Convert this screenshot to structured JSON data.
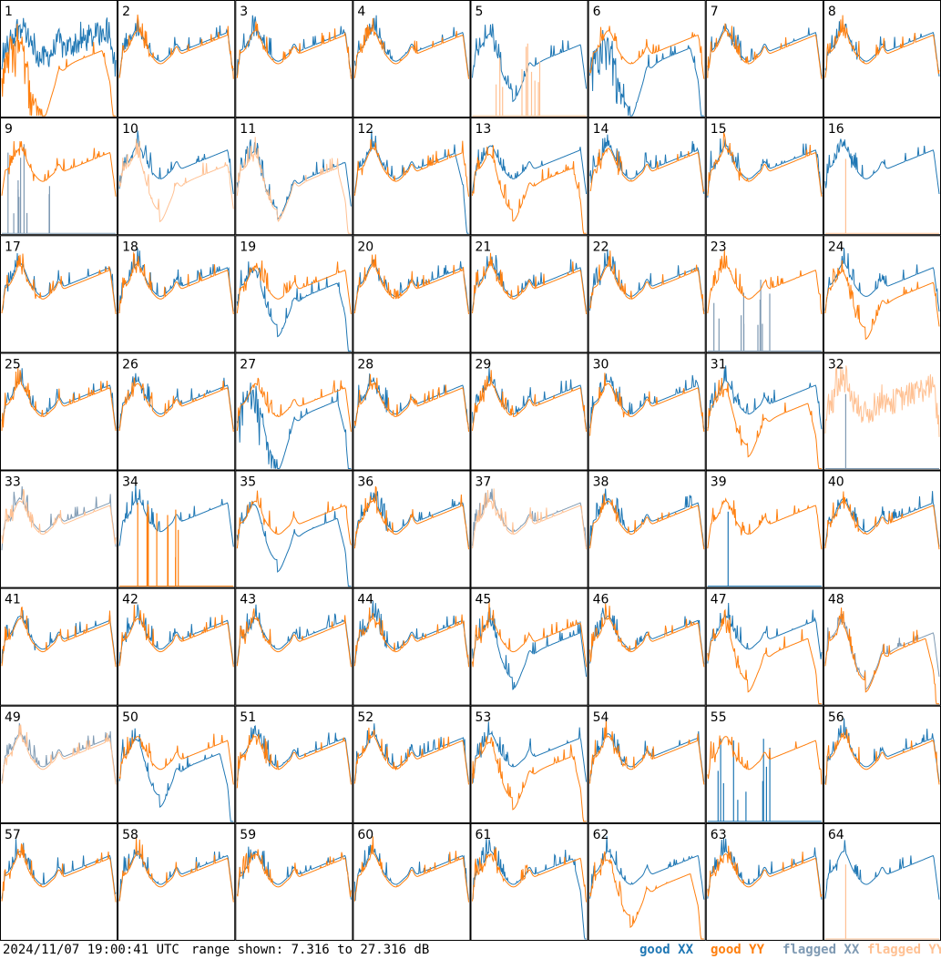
{
  "chart_data": {
    "type": "line",
    "panels": [
      {
        "label": "1",
        "xx": "good",
        "yy": "good",
        "xx_shape": "peaky",
        "yy_shape": "deep-dip-drop"
      },
      {
        "label": "2",
        "xx": "good",
        "yy": "good"
      },
      {
        "label": "3",
        "xx": "good",
        "yy": "good"
      },
      {
        "label": "4",
        "xx": "good",
        "yy": "good"
      },
      {
        "label": "5",
        "xx": "good",
        "yy": "flagged",
        "xx_shape": "dip",
        "yy_shape": "sparse-spikes"
      },
      {
        "label": "6",
        "xx": "good",
        "yy": "good",
        "xx_shape": "deep-dip-drop",
        "yy_shape": "normal"
      },
      {
        "label": "7",
        "xx": "good",
        "yy": "good"
      },
      {
        "label": "8",
        "xx": "good",
        "yy": "good"
      },
      {
        "label": "9",
        "xx": "flagged",
        "yy": "good",
        "xx_shape": "sparse-spikes",
        "yy_shape": "normal"
      },
      {
        "label": "10",
        "xx": "good",
        "yy": "flagged",
        "xx_shape": "normal",
        "yy_shape": "dip"
      },
      {
        "label": "11",
        "xx": "good",
        "yy": "flagged",
        "xx_shape": "dip",
        "yy_shape": "dip-drop"
      },
      {
        "label": "12",
        "xx": "good",
        "yy": "good",
        "xx_shape": "drop",
        "yy_shape": "normal"
      },
      {
        "label": "13",
        "xx": "good",
        "yy": "good",
        "xx_shape": "normal",
        "yy_shape": "dip-drop"
      },
      {
        "label": "14",
        "xx": "good",
        "yy": "good"
      },
      {
        "label": "15",
        "xx": "good",
        "yy": "good"
      },
      {
        "label": "16",
        "xx": "good",
        "yy": "flagged",
        "xx_shape": "normal",
        "yy_shape": "single-spike"
      },
      {
        "label": "17",
        "xx": "good",
        "yy": "good"
      },
      {
        "label": "18",
        "xx": "good",
        "yy": "good"
      },
      {
        "label": "19",
        "xx": "good",
        "yy": "good",
        "xx_shape": "dip-drop",
        "yy_shape": "normal"
      },
      {
        "label": "20",
        "xx": "good",
        "yy": "good"
      },
      {
        "label": "21",
        "xx": "good",
        "yy": "good"
      },
      {
        "label": "22",
        "xx": "good",
        "yy": "good"
      },
      {
        "label": "23",
        "xx": "flagged",
        "yy": "good",
        "xx_shape": "sparse-spikes",
        "yy_shape": "normal"
      },
      {
        "label": "24",
        "xx": "good",
        "yy": "good",
        "xx_shape": "normal",
        "yy_shape": "dip"
      },
      {
        "label": "25",
        "xx": "good",
        "yy": "good"
      },
      {
        "label": "26",
        "xx": "good",
        "yy": "good"
      },
      {
        "label": "27",
        "xx": "good",
        "yy": "good",
        "xx_shape": "deep-dip-drop",
        "yy_shape": "normal"
      },
      {
        "label": "28",
        "xx": "good",
        "yy": "good"
      },
      {
        "label": "29",
        "xx": "good",
        "yy": "good"
      },
      {
        "label": "30",
        "xx": "good",
        "yy": "good"
      },
      {
        "label": "31",
        "xx": "good",
        "yy": "good",
        "xx_shape": "normal",
        "yy_shape": "dip-drop"
      },
      {
        "label": "32",
        "xx": "flagged",
        "yy": "flagged",
        "xx_shape": "single-spike",
        "yy_shape": "peaky"
      },
      {
        "label": "33",
        "xx": "flagged",
        "yy": "flagged"
      },
      {
        "label": "34",
        "xx": "good",
        "yy": "good",
        "xx_shape": "normal",
        "yy_shape": "sparse-spikes"
      },
      {
        "label": "35",
        "xx": "good",
        "yy": "good",
        "xx_shape": "dip-drop",
        "yy_shape": "normal"
      },
      {
        "label": "36",
        "xx": "good",
        "yy": "good"
      },
      {
        "label": "37",
        "xx": "flagged",
        "yy": "flagged"
      },
      {
        "label": "38",
        "xx": "good",
        "yy": "good"
      },
      {
        "label": "39",
        "xx": "good",
        "yy": "good",
        "xx_shape": "single-spike",
        "yy_shape": "normal"
      },
      {
        "label": "40",
        "xx": "good",
        "yy": "good"
      },
      {
        "label": "41",
        "xx": "good",
        "yy": "good"
      },
      {
        "label": "42",
        "xx": "good",
        "yy": "good"
      },
      {
        "label": "43",
        "xx": "good",
        "yy": "good"
      },
      {
        "label": "44",
        "xx": "good",
        "yy": "good"
      },
      {
        "label": "45",
        "xx": "good",
        "yy": "good",
        "xx_shape": "dip",
        "yy_shape": "normal"
      },
      {
        "label": "46",
        "xx": "good",
        "yy": "good"
      },
      {
        "label": "47",
        "xx": "good",
        "yy": "good",
        "xx_shape": "normal",
        "yy_shape": "dip-drop"
      },
      {
        "label": "48",
        "xx": "flagged",
        "yy": "good",
        "xx_shape": "dip",
        "yy_shape": "dip-drop"
      },
      {
        "label": "49",
        "xx": "flagged",
        "yy": "flagged"
      },
      {
        "label": "50",
        "xx": "good",
        "yy": "good",
        "xx_shape": "dip-drop",
        "yy_shape": "normal"
      },
      {
        "label": "51",
        "xx": "good",
        "yy": "good"
      },
      {
        "label": "52",
        "xx": "good",
        "yy": "good"
      },
      {
        "label": "53",
        "xx": "good",
        "yy": "good",
        "xx_shape": "normal",
        "yy_shape": "dip-drop"
      },
      {
        "label": "54",
        "xx": "good",
        "yy": "good"
      },
      {
        "label": "55",
        "xx": "good",
        "yy": "good",
        "xx_shape": "sparse-spikes",
        "yy_shape": "normal"
      },
      {
        "label": "56",
        "xx": "good",
        "yy": "good"
      },
      {
        "label": "57",
        "xx": "good",
        "yy": "good"
      },
      {
        "label": "58",
        "xx": "good",
        "yy": "good"
      },
      {
        "label": "59",
        "xx": "good",
        "yy": "good"
      },
      {
        "label": "60",
        "xx": "good",
        "yy": "good"
      },
      {
        "label": "61",
        "xx": "good",
        "yy": "good",
        "xx_shape": "drop",
        "yy_shape": "normal"
      },
      {
        "label": "62",
        "xx": "good",
        "yy": "good",
        "xx_shape": "normal",
        "yy_shape": "dip-drop"
      },
      {
        "label": "63",
        "xx": "good",
        "yy": "good"
      },
      {
        "label": "64",
        "xx": "good",
        "yy": "flagged",
        "xx_shape": "normal",
        "yy_shape": "single-spike"
      }
    ],
    "legend": [
      "good XX",
      "good YY",
      "flagged XX",
      "flagged YY"
    ],
    "colors": {
      "good_xx": "#1f77b4",
      "good_yy": "#ff7f0e",
      "flagged_xx": "#7f9ab3",
      "flagged_yy": "#ffc193"
    },
    "legend_position": "bottom-right",
    "grid": false
  },
  "footer": {
    "timestamp": "2024/11/07 19:00:41 UTC",
    "range": "range shown: 7.316 to 27.316 dB"
  }
}
